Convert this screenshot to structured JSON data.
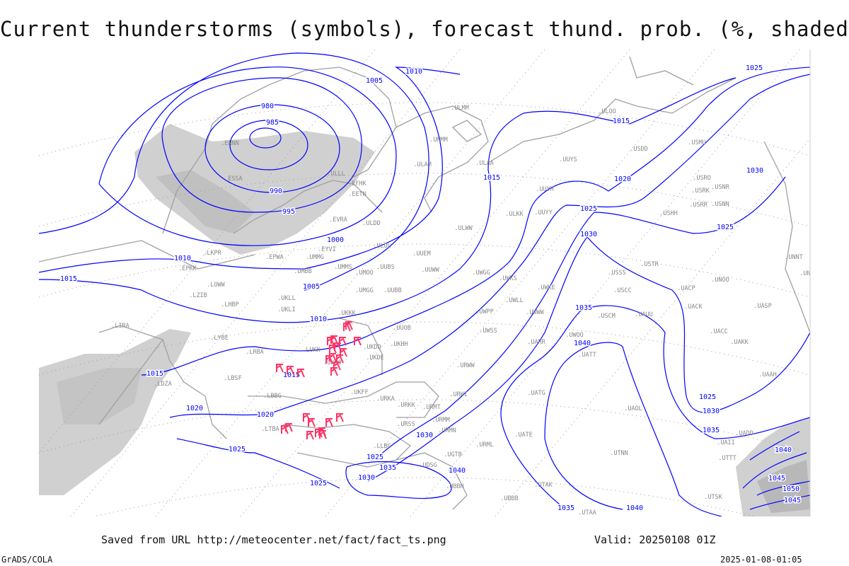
{
  "title": "Current thunderstorms (symbols), forecast thund. prob. (%, shaded)",
  "footer": {
    "saved_from": "Saved from URL http://meteocenter.net/fact/fact_ts.png",
    "valid": "Valid: 20250108 01Z",
    "software": "GrADS/COLA",
    "generated": "2025-01-08-01:05"
  },
  "colors": {
    "isobar": "#0000ff",
    "thunderstorm_symbol": "#ff3366",
    "shading": "#d0d0d0",
    "coastline": "#a0a0a0"
  },
  "isobar_labels": [
    "980",
    "985",
    "990",
    "995",
    "1000",
    "1005",
    "1005",
    "1010",
    "1010",
    "1010",
    "1015",
    "1015",
    "1015",
    "1015",
    "1015",
    "1020",
    "1020",
    "1020",
    "1025",
    "1025",
    "1025",
    "1025",
    "1025",
    "1025",
    "1025",
    "1030",
    "1030",
    "1030",
    "1030",
    "1030",
    "1035",
    "1035",
    "1035",
    "1035",
    "1040",
    "1040",
    "1040",
    "1040",
    "1045",
    "1050",
    "1045"
  ],
  "stations": [
    "ENNN",
    "ULLL",
    "ULOL",
    "UMMM",
    "ULDD",
    "ESSA",
    "EFHK",
    "EETN",
    "EVRA",
    "EYVI",
    "UMMG",
    "EPWA",
    "UMBB",
    "UMMS",
    "UMOO",
    "UUBS",
    "UUEM",
    "UUWW",
    "UWGG",
    "UMGG",
    "UUBB",
    "UKKK",
    "UUOB",
    "ULKK",
    "UUYY",
    "UUYH",
    "ULWW",
    "UUYS",
    "ULOO",
    "USDD",
    "USMU",
    "USRO",
    "USRK",
    "USNR",
    "USRR",
    "USNN",
    "USHH",
    "USSS",
    "USTR",
    "USCC",
    "USCM",
    "UAUU",
    "UACP",
    "UACK",
    "UNOO",
    "UASP",
    "UACC",
    "UAKK",
    "UAAH",
    "UNBB",
    "UNNT",
    "UWKS",
    "UWKE",
    "UWLL",
    "UWWW",
    "UWPP",
    "UWOO",
    "UATT",
    "UARR",
    "UWSS",
    "URWW",
    "UKDD",
    "UKHH",
    "UKDE",
    "UKOO",
    "LUKK",
    "UKFF",
    "URKA",
    "URKK",
    "URSS",
    "URMT",
    "URMM",
    "URMN",
    "URWI",
    "URML",
    "UATG",
    "UATE",
    "UAOL",
    "UADD",
    "UAII",
    "UTTT",
    "UTAK",
    "UTNN",
    "UTAA",
    "UTSK",
    "UBBB",
    "UGTB",
    "UDSG",
    "UBBN",
    "LBSF",
    "LBBG",
    "LRBA",
    "LHBP",
    "LZIB",
    "LKPR",
    "EPKK",
    "UKLL",
    "UKLI",
    "LOWW",
    "LIRA",
    "LYBE",
    "LDZA",
    "LTBA",
    "LLBG",
    "ULAA",
    "ULMM",
    "ULAM"
  ]
}
